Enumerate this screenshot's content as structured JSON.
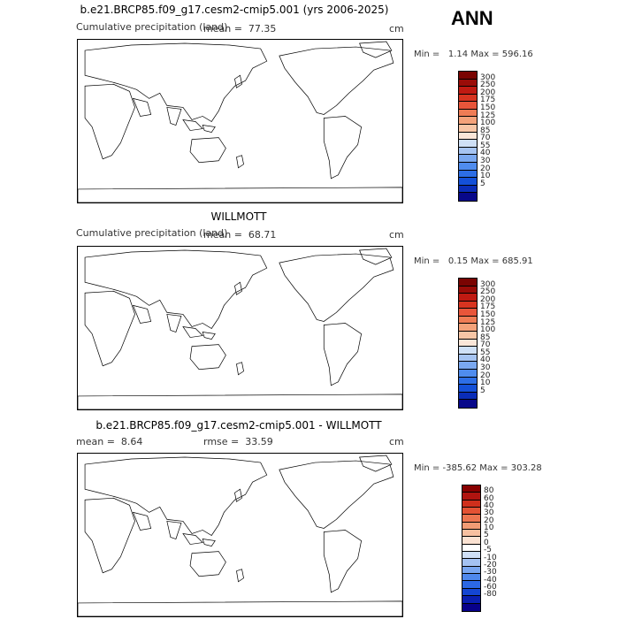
{
  "season": "ANN",
  "colors": {
    "precip_scale": [
      "#08088a",
      "#0a2db8",
      "#1450d8",
      "#2d6ee6",
      "#4f8cee",
      "#7aa8f0",
      "#a6c4f2",
      "#cfe0f6",
      "#fbe6d8",
      "#f8c6a6",
      "#f4a27a",
      "#ef7c55",
      "#e8553a",
      "#d83420",
      "#c01a12",
      "#9a0c08",
      "#7a0402"
    ],
    "diff_scale": [
      "#08008a",
      "#0a1fb0",
      "#1446d2",
      "#2c68e4",
      "#4f88ec",
      "#79a6f0",
      "#a4c2f2",
      "#cfdff6",
      "#ffffff",
      "#fbe2d2",
      "#f7c0a0",
      "#f29b74",
      "#ec7550",
      "#e35234",
      "#cf2f1c",
      "#b01410",
      "#880000"
    ]
  },
  "panels": [
    {
      "title": "b.e21.BRCP85.f09_g17.cesm2-cmip5.001 (yrs 2006-2025)",
      "left_label": "Cumulative precipitation (land)",
      "center_label": "mean =",
      "center_value": "77.35",
      "units": "cm",
      "min_label": "Min =",
      "min_value": "1.14",
      "max_label": "Max =",
      "max_value": "596.16",
      "ticks": [
        "300",
        "250",
        "200",
        "175",
        "150",
        "125",
        "100",
        "85",
        "70",
        "55",
        "40",
        "30",
        "20",
        "10",
        "5"
      ]
    },
    {
      "title": "WILLMOTT",
      "left_label": "Cumulative precipitation (land)",
      "center_label": "mean =",
      "center_value": "68.71",
      "units": "cm",
      "min_label": "Min =",
      "min_value": "0.15",
      "max_label": "Max =",
      "max_value": "685.91",
      "ticks": [
        "300",
        "250",
        "200",
        "175",
        "150",
        "125",
        "100",
        "85",
        "70",
        "55",
        "40",
        "30",
        "20",
        "10",
        "5"
      ]
    },
    {
      "title": "b.e21.BRCP85.f09_g17.cesm2-cmip5.001 - WILLMOTT",
      "left_label": "mean =",
      "left_value": "8.64",
      "center_label": "rmse =",
      "center_value": "33.59",
      "units": "cm",
      "min_label": "Min =",
      "min_value": "-385.62",
      "max_label": "Max =",
      "max_value": "303.28",
      "ticks": [
        "80",
        "60",
        "40",
        "30",
        "20",
        "10",
        "5",
        "0",
        "-5",
        "-10",
        "-20",
        "-30",
        "-40",
        "-60",
        "-80"
      ]
    }
  ]
}
